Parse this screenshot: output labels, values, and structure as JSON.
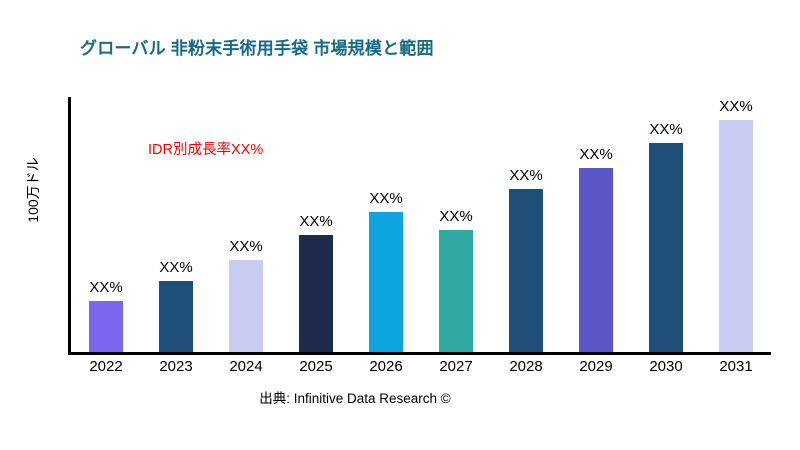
{
  "title": "グローバル 非粉末手術用手袋 市場規模と範囲",
  "annotation": "IDR別成長率XX%",
  "ylabel": "100万ドル",
  "caption": "出典: Infinitive Data Research ©",
  "colors": {
    "title": "#166A83",
    "annotation": "#FF0000",
    "axis": "#000000",
    "background": "#FFFFFF"
  },
  "chart_data": {
    "type": "bar",
    "title": "グローバル 非粉末手術用手袋 市場規模と範囲",
    "xlabel": "",
    "ylabel": "100万ドル",
    "ylim": [
      0,
      100
    ],
    "grid": false,
    "legend": null,
    "categories": [
      "2022",
      "2023",
      "2024",
      "2025",
      "2026",
      "2027",
      "2028",
      "2029",
      "2030",
      "2031"
    ],
    "values": [
      20,
      28,
      36,
      46,
      55,
      48,
      64,
      72,
      82,
      91
    ],
    "bar_labels": [
      "XX%",
      "XX%",
      "XX%",
      "XX%",
      "XX%",
      "XX%",
      "XX%",
      "XX%",
      "XX%",
      "XX%"
    ],
    "bar_colors": [
      "#7B68EE",
      "#1F4E79",
      "#C9CCF0",
      "#1F2A4F",
      "#0EA5E0",
      "#2FA8A4",
      "#1F4E79",
      "#5B57C7",
      "#1F4E79",
      "#C9CCF0"
    ],
    "annotation": "IDR別成長率XX%",
    "source": "出典: Infinitive Data Research ©"
  }
}
